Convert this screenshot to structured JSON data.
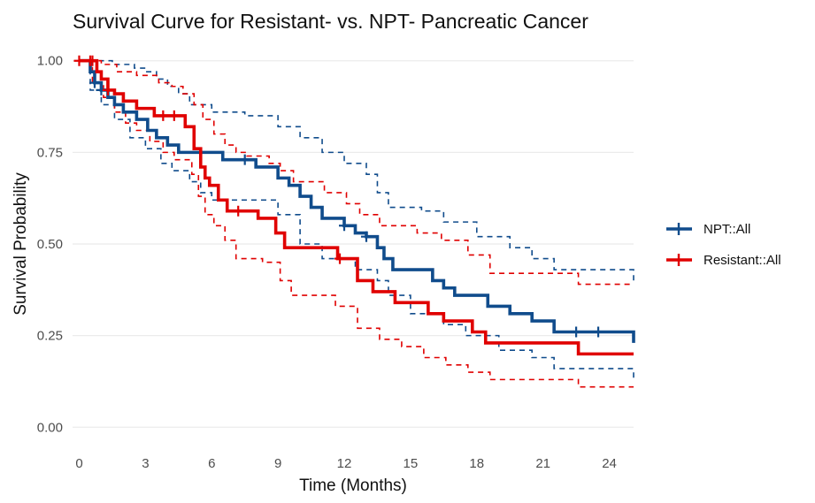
{
  "chart_data": {
    "type": "line",
    "subtype": "kaplan-meier",
    "title": "Survival Curve for Resistant- vs. NPT- Pancreatic Cancer",
    "xlabel": "Time (Months)",
    "ylabel": "Survival Probability",
    "xlim": [
      -0.3,
      25.1
    ],
    "ylim": [
      -0.05,
      1.05
    ],
    "x_ticks": [
      0,
      3,
      6,
      9,
      12,
      15,
      18,
      21,
      24
    ],
    "x_tick_labels": [
      "0",
      "3",
      "6",
      "9",
      "12",
      "15",
      "18",
      "21",
      "24"
    ],
    "y_ticks": [
      0,
      0.25,
      0.5,
      0.75,
      1.0
    ],
    "y_tick_labels": [
      "0.00",
      "0.25",
      "0.50",
      "0.75",
      "1.00"
    ],
    "grid": true,
    "legend_position": "right",
    "series": [
      {
        "name": "NPT::All",
        "color": "#104c8c",
        "survival": {
          "x": [
            0,
            0.5,
            0.7,
            1.0,
            1.3,
            1.6,
            2.0,
            2.6,
            3.1,
            3.5,
            4.0,
            4.5,
            6.5,
            8.0,
            9.0,
            9.5,
            10.0,
            10.5,
            11.0,
            12.0,
            12.5,
            13.0,
            13.5,
            13.8,
            14.2,
            16.0,
            16.5,
            17.0,
            18.5,
            19.5,
            20.5,
            21.5,
            25.1
          ],
          "y": [
            1.0,
            0.97,
            0.94,
            0.92,
            0.9,
            0.88,
            0.86,
            0.84,
            0.81,
            0.79,
            0.77,
            0.75,
            0.73,
            0.71,
            0.68,
            0.66,
            0.63,
            0.6,
            0.57,
            0.55,
            0.53,
            0.52,
            0.49,
            0.46,
            0.43,
            0.4,
            0.38,
            0.36,
            0.33,
            0.31,
            0.29,
            0.26,
            0.23
          ]
        },
        "upper_ci": {
          "x": [
            0,
            1.5,
            2.5,
            3.0,
            3.5,
            4.0,
            4.5,
            5.0,
            6.0,
            7.5,
            9.0,
            10.0,
            11.0,
            12.0,
            13.0,
            13.5,
            14.0,
            15.5,
            16.5,
            18.0,
            19.5,
            20.5,
            21.5,
            25.1
          ],
          "y": [
            1.0,
            0.99,
            0.98,
            0.97,
            0.95,
            0.93,
            0.91,
            0.88,
            0.86,
            0.85,
            0.82,
            0.79,
            0.75,
            0.72,
            0.69,
            0.64,
            0.6,
            0.59,
            0.56,
            0.52,
            0.49,
            0.46,
            0.43,
            0.4
          ]
        },
        "lower_ci": {
          "x": [
            0,
            0.5,
            1.0,
            1.6,
            2.3,
            3.0,
            3.7,
            4.2,
            5.0,
            5.5,
            6.0,
            9.0,
            10.0,
            11.0,
            12.5,
            13.5,
            14.0,
            15.0,
            16.5,
            17.5,
            19.0,
            20.5,
            21.5,
            25.1
          ],
          "y": [
            1.0,
            0.92,
            0.88,
            0.84,
            0.79,
            0.76,
            0.72,
            0.7,
            0.67,
            0.64,
            0.62,
            0.58,
            0.5,
            0.46,
            0.43,
            0.4,
            0.36,
            0.31,
            0.28,
            0.25,
            0.21,
            0.19,
            0.16,
            0.13
          ]
        },
        "censor_x": [
          0.7,
          1.0,
          7.5,
          12.0,
          13.0,
          22.5,
          23.5
        ],
        "censor_y": [
          0.94,
          0.92,
          0.73,
          0.55,
          0.52,
          0.26,
          0.26
        ]
      },
      {
        "name": "Resistant::All",
        "color": "#e00000",
        "survival": {
          "x": [
            0,
            0.8,
            1.0,
            1.3,
            1.6,
            2.0,
            2.6,
            3.4,
            3.8,
            4.8,
            5.2,
            5.5,
            5.7,
            5.9,
            6.3,
            6.7,
            8.1,
            8.9,
            9.3,
            11.7,
            12.6,
            13.3,
            14.3,
            15.8,
            16.5,
            17.8,
            18.4,
            22.6,
            25.1
          ],
          "y": [
            1.0,
            0.97,
            0.95,
            0.92,
            0.91,
            0.89,
            0.87,
            0.85,
            0.85,
            0.82,
            0.76,
            0.71,
            0.68,
            0.66,
            0.62,
            0.59,
            0.57,
            0.53,
            0.49,
            0.46,
            0.4,
            0.37,
            0.34,
            0.31,
            0.29,
            0.26,
            0.23,
            0.2,
            0.2
          ]
        },
        "upper_ci": {
          "x": [
            0,
            1.0,
            1.7,
            2.6,
            3.6,
            4.2,
            4.7,
            5.2,
            5.6,
            6.1,
            6.6,
            7.1,
            7.6,
            8.6,
            9.1,
            9.7,
            11.1,
            12.1,
            12.7,
            13.6,
            15.3,
            16.4,
            17.6,
            18.6,
            22.6,
            25.1
          ],
          "y": [
            1.0,
            0.99,
            0.97,
            0.96,
            0.94,
            0.93,
            0.91,
            0.88,
            0.84,
            0.8,
            0.77,
            0.75,
            0.74,
            0.72,
            0.7,
            0.67,
            0.64,
            0.61,
            0.58,
            0.55,
            0.53,
            0.51,
            0.47,
            0.42,
            0.39,
            0.39
          ]
        },
        "lower_ci": {
          "x": [
            0,
            0.6,
            1.1,
            1.6,
            2.1,
            2.6,
            3.2,
            3.8,
            4.3,
            5.1,
            5.4,
            5.7,
            6.1,
            6.6,
            7.1,
            8.3,
            9.1,
            9.6,
            11.6,
            12.6,
            13.6,
            14.6,
            15.6,
            16.6,
            17.6,
            18.6,
            22.6,
            25.1
          ],
          "y": [
            1.0,
            0.94,
            0.9,
            0.86,
            0.83,
            0.81,
            0.78,
            0.75,
            0.73,
            0.69,
            0.63,
            0.58,
            0.55,
            0.51,
            0.46,
            0.45,
            0.4,
            0.36,
            0.33,
            0.27,
            0.24,
            0.22,
            0.19,
            0.17,
            0.15,
            0.13,
            0.11,
            0.11
          ]
        },
        "censor_x": [
          0,
          0.5,
          0.6,
          1.3,
          3.8,
          4.3,
          7.2,
          11.8
        ],
        "censor_y": [
          1.0,
          1.0,
          1.0,
          0.92,
          0.85,
          0.85,
          0.59,
          0.46
        ]
      }
    ]
  }
}
